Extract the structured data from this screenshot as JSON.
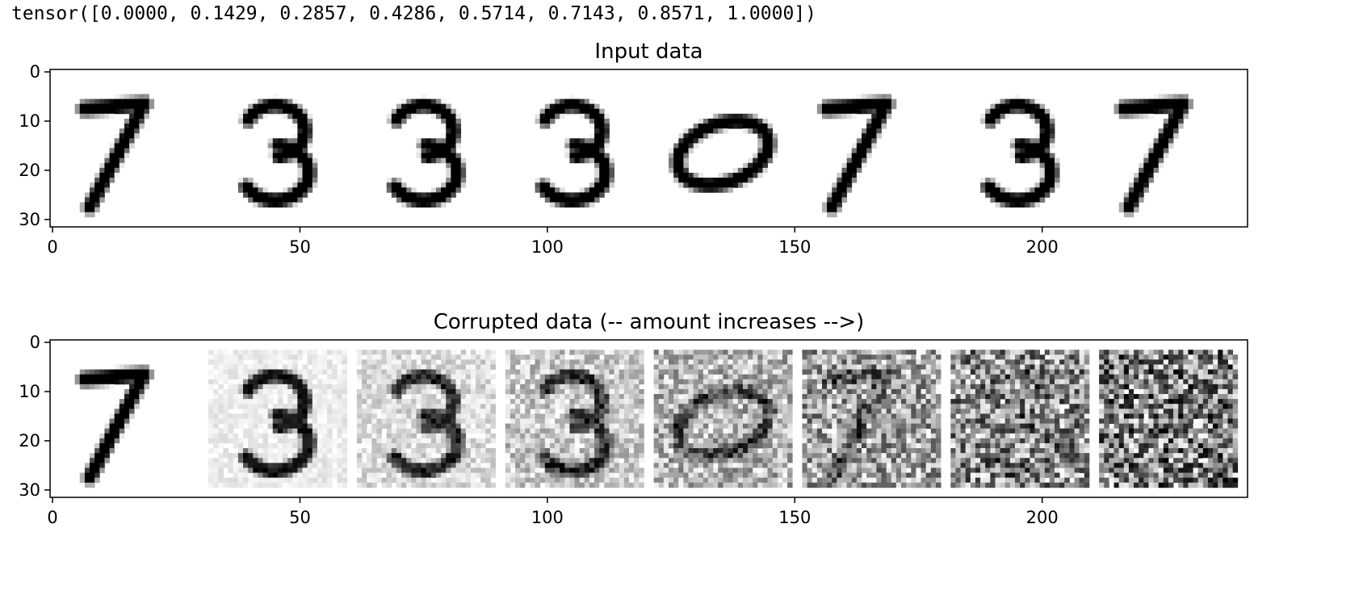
{
  "header": {
    "tensor_output": "tensor([0.0000, 0.1429, 0.2857, 0.4286, 0.5714, 0.7143, 0.8571, 1.0000])"
  },
  "chart_data": [
    {
      "type": "heatmap",
      "title": "Input data",
      "xlabel": "",
      "ylabel": "",
      "xlim": [
        0,
        240
      ],
      "ylim": [
        30,
        0
      ],
      "xticks": [
        0,
        50,
        100,
        150,
        200
      ],
      "yticks": [
        0,
        10,
        20,
        30
      ],
      "colormap": "Greys",
      "digits": [
        7,
        3,
        3,
        3,
        0,
        7,
        3,
        7
      ],
      "amounts": [
        0,
        0,
        0,
        0,
        0,
        0,
        0,
        0
      ]
    },
    {
      "type": "heatmap",
      "title": "Corrupted data (-- amount increases -->)",
      "xlabel": "",
      "ylabel": "",
      "xlim": [
        0,
        240
      ],
      "ylim": [
        30,
        0
      ],
      "xticks": [
        0,
        50,
        100,
        150,
        200
      ],
      "yticks": [
        0,
        10,
        20,
        30
      ],
      "colormap": "Greys",
      "digits": [
        7,
        3,
        3,
        3,
        0,
        7,
        3,
        7
      ],
      "amounts": [
        0.0,
        0.1429,
        0.2857,
        0.4286,
        0.5714,
        0.7143,
        0.8571,
        1.0
      ]
    }
  ]
}
